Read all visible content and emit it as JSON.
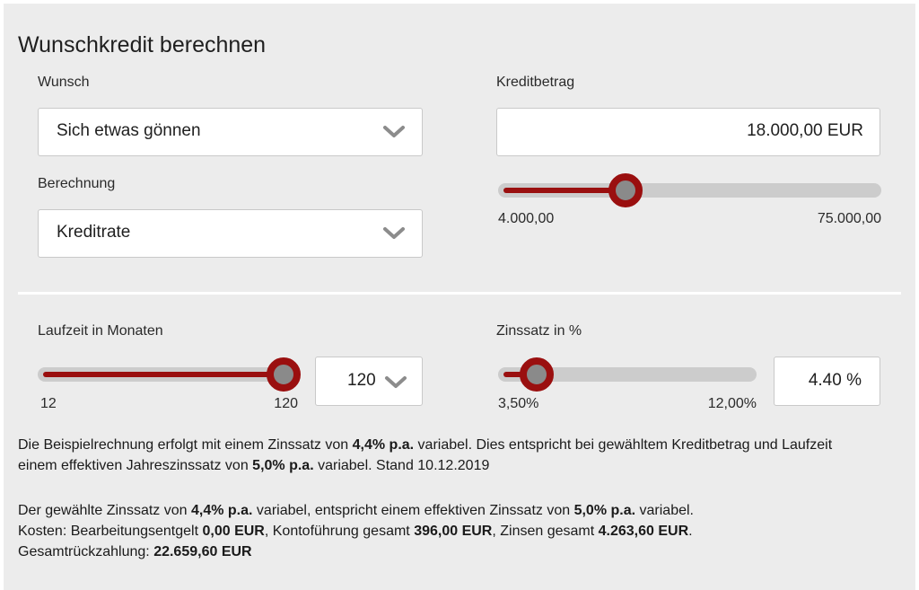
{
  "title": "Wunschkredit berechnen",
  "wunsch": {
    "label": "Wunsch",
    "value": "Sich etwas gönnen"
  },
  "berechnung": {
    "label": "Berechnung",
    "value": "Kreditrate"
  },
  "kreditbetrag": {
    "label": "Kreditbetrag",
    "amount": "18.000,00",
    "unit": "EUR",
    "min_label": "4.000,00",
    "max_label": "75.000,00",
    "min": 4000,
    "max": 75000,
    "value": 18000
  },
  "laufzeit": {
    "label": "Laufzeit in Monaten",
    "selected": "120",
    "min_label": "12",
    "max_label": "120",
    "min": 12,
    "max": 120,
    "value": 120
  },
  "zinssatz": {
    "label": "Zinssatz in %",
    "value_text": "4.40",
    "unit": "%",
    "min_label": "3,50%",
    "max_label": "12,00%",
    "min": 3.5,
    "max": 12.0,
    "value": 4.4
  },
  "info1": {
    "p1": "Die Beispielrechnung erfolgt mit einem Zinssatz von ",
    "b1": "4,4% p.a.",
    "p2": " variabel. Dies entspricht bei gewähltem Kreditbetrag und Laufzeit",
    "p3": "einem effektiven Jahreszinssatz von ",
    "b2": "5,0% p.a.",
    "p4": " variabel. Stand 10.12.2019"
  },
  "info2": {
    "l1a": "Der gewählte Zinssatz von ",
    "l1b": "4,4% p.a.",
    "l1c": " variabel, entspricht einem effektiven Zinssatz von ",
    "l1d": "5,0% p.a.",
    "l1e": " variabel.",
    "l2a": "Kosten: Bearbeitungsentgelt ",
    "l2b": "0,00 EUR",
    "l2c": ", Kontoführung gesamt ",
    "l2d": "396,00 EUR",
    "l2e": ", Zinsen gesamt ",
    "l2f": "4.263,60 EUR",
    "l2g": ".",
    "l3a": "Gesamtrückzahlung: ",
    "l3b": "22.659,60 EUR"
  },
  "icons": {
    "dropdown": "chevron-down-icon"
  },
  "colors": {
    "accent": "#9a0f0f",
    "panel": "#ececec"
  }
}
